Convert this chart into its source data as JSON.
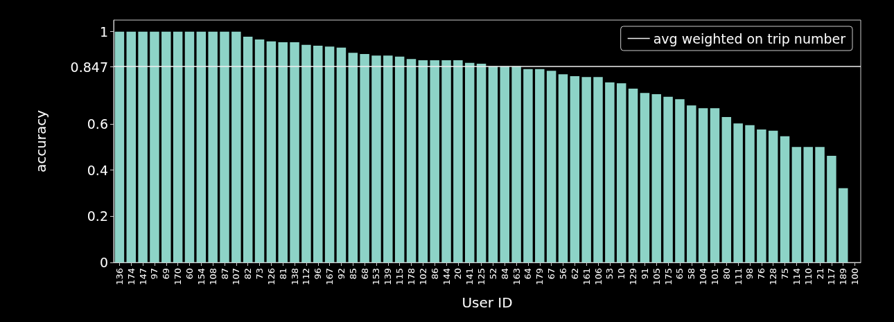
{
  "chart_data": {
    "type": "bar",
    "xlabel": "User ID",
    "ylabel": "accuracy",
    "categories": [
      "136",
      "174",
      "147",
      "97",
      "69",
      "170",
      "60",
      "154",
      "108",
      "87",
      "107",
      "82",
      "73",
      "126",
      "81",
      "138",
      "112",
      "96",
      "167",
      "92",
      "85",
      "68",
      "153",
      "139",
      "115",
      "178",
      "102",
      "86",
      "144",
      "20",
      "141",
      "125",
      "52",
      "84",
      "163",
      "64",
      "179",
      "67",
      "56",
      "62",
      "161",
      "106",
      "53",
      "10",
      "129",
      "91",
      "105",
      "175",
      "65",
      "58",
      "104",
      "101",
      "80",
      "111",
      "98",
      "76",
      "128",
      "75",
      "114",
      "110",
      "21",
      "117",
      "189",
      "100"
    ],
    "values": [
      1,
      1,
      1,
      1,
      1,
      1,
      1,
      1,
      1,
      1,
      1,
      0.978,
      0.966,
      0.958,
      0.954,
      0.954,
      0.943,
      0.939,
      0.935,
      0.931,
      0.908,
      0.903,
      0.896,
      0.896,
      0.892,
      0.881,
      0.876,
      0.876,
      0.876,
      0.876,
      0.865,
      0.861,
      0.85,
      0.85,
      0.85,
      0.838,
      0.838,
      0.83,
      0.815,
      0.807,
      0.803,
      0.803,
      0.78,
      0.776,
      0.753,
      0.734,
      0.729,
      0.718,
      0.707,
      0.68,
      0.668,
      0.668,
      0.63,
      0.602,
      0.595,
      0.576,
      0.571,
      0.547,
      0.5,
      0.5,
      0.5,
      0.462,
      0.322,
      0
    ],
    "color": "#8dd3c7",
    "ylim": [
      0,
      1.05
    ],
    "yticks": [
      0,
      0.2,
      0.4,
      0.6,
      0.847,
      1
    ],
    "ref_lines": [
      {
        "axis": "y",
        "value": 0.847,
        "label": "avg weighted on trip number",
        "color": "#f0f0f0"
      }
    ],
    "legend": "top right",
    "grid": false
  }
}
